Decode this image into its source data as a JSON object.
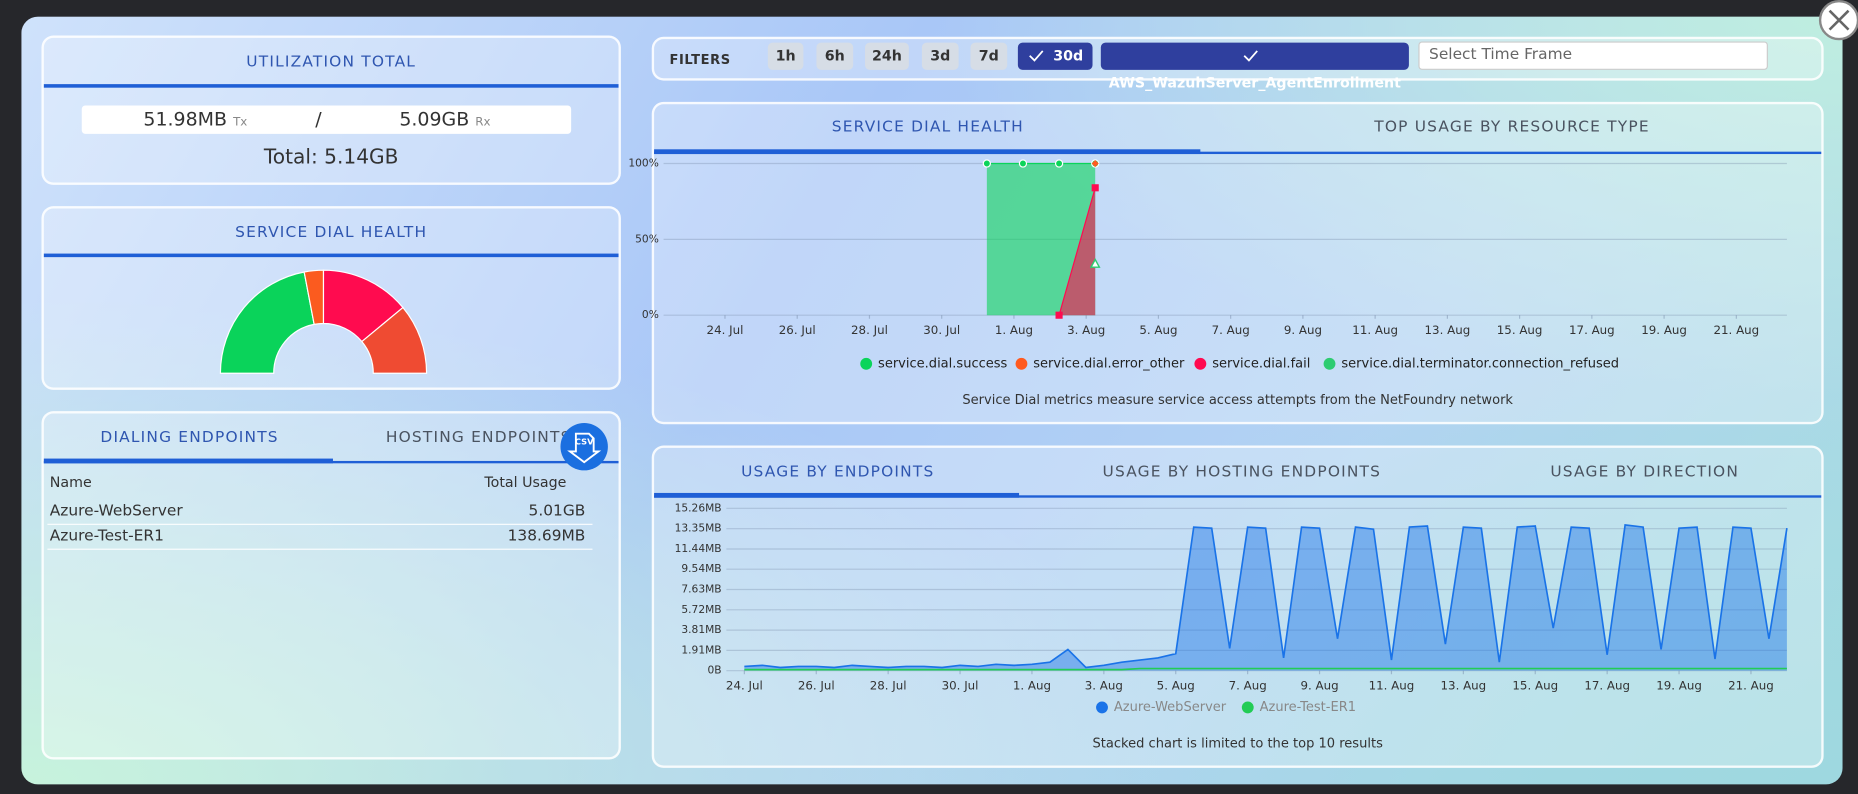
{
  "utilization": {
    "title": "UTILIZATION TOTAL",
    "tx": "51.98MB",
    "tx_unit": "Tx",
    "separator": "/",
    "rx": "5.09GB",
    "rx_unit": "Rx",
    "total": "Total: 5.14GB"
  },
  "dial_health_gauge": {
    "title": "SERVICE DIAL HEALTH",
    "segments": [
      {
        "color": "#0ad35a",
        "value": 44
      },
      {
        "color": "#fb5b1f",
        "value": 6
      },
      {
        "color": "#ff0b4f",
        "value": 28
      },
      {
        "color": "#ef4b32",
        "value": 22
      }
    ]
  },
  "endpoints": {
    "tabs": [
      "DIALING ENDPOINTS",
      "HOSTING ENDPOINTS"
    ],
    "csv": "CSV",
    "columns": [
      "Name",
      "Total Usage"
    ],
    "rows": [
      [
        "Azure-WebServer",
        "5.01GB"
      ],
      [
        "Azure-Test-ER1",
        "138.69MB"
      ]
    ]
  },
  "filters": {
    "label": "FILTERS",
    "buttons": [
      {
        "label": "1h",
        "selected": false
      },
      {
        "label": "6h",
        "selected": false
      },
      {
        "label": "24h",
        "selected": false
      },
      {
        "label": "3d",
        "selected": false
      },
      {
        "label": "7d",
        "selected": false
      },
      {
        "label": "30d",
        "selected": true
      }
    ],
    "service": "AWS_WazuhServer_AgentEnrollment",
    "time_frame_placeholder": "Select Time Frame"
  },
  "dial_chart": {
    "tabs": [
      "SERVICE DIAL HEALTH",
      "TOP USAGE BY RESOURCE TYPE"
    ],
    "note": "Service Dial metrics measure service access attempts from the NetFoundry network",
    "chart": {
      "type": "area",
      "x": [
        7.25,
        8.25,
        9.25,
        10.25
      ],
      "xlim": [
        -1.7,
        29.4
      ],
      "xticks": [
        {
          "value": 0,
          "label": "24. Jul"
        },
        {
          "value": 2,
          "label": "26. Jul"
        },
        {
          "value": 4,
          "label": "28. Jul"
        },
        {
          "value": 6,
          "label": "30. Jul"
        },
        {
          "value": 8,
          "label": "1. Aug"
        },
        {
          "value": 10,
          "label": "3. Aug"
        },
        {
          "value": 12,
          "label": "5. Aug"
        },
        {
          "value": 14,
          "label": "7. Aug"
        },
        {
          "value": 16,
          "label": "9. Aug"
        },
        {
          "value": 18,
          "label": "11. Aug"
        },
        {
          "value": 20,
          "label": "13. Aug"
        },
        {
          "value": 22,
          "label": "15. Aug"
        },
        {
          "value": 24,
          "label": "17. Aug"
        },
        {
          "value": 26,
          "label": "19. Aug"
        },
        {
          "value": 28,
          "label": "21. Aug"
        }
      ],
      "ylim": [
        0,
        100
      ],
      "yticks": [
        {
          "value": 0,
          "label": "0%"
        },
        {
          "value": 50,
          "label": "50%"
        },
        {
          "value": 100,
          "label": "100%"
        }
      ],
      "grid": true,
      "series": [
        {
          "name": "service.dial.success",
          "color": "#0bd45a",
          "fill": true,
          "marker": "circle",
          "values": [
            100,
            100,
            100,
            100
          ]
        },
        {
          "name": "service.dial.error_other",
          "color": "#ff5a1f",
          "fill": false,
          "marker": "diamond",
          "values": [
            null,
            null,
            null,
            100
          ]
        },
        {
          "name": "service.dial.fail",
          "color": "#ff0a50",
          "fill": true,
          "marker": "square",
          "values": [
            null,
            null,
            0,
            84
          ]
        },
        {
          "name": "service.dial.terminator.connection_refused",
          "color": "#2ecc71",
          "fill": false,
          "marker": "triangle",
          "values": [
            null,
            null,
            null,
            34
          ]
        }
      ]
    }
  },
  "usage_chart": {
    "tabs": [
      "USAGE BY ENDPOINTS",
      "USAGE BY HOSTING ENDPOINTS",
      "USAGE BY DIRECTION"
    ],
    "note": "Stacked chart is limited to the top 10 results",
    "chart": {
      "type": "area",
      "x": [
        0,
        0.5,
        1,
        1.5,
        2,
        2.5,
        3,
        3.5,
        4,
        4.5,
        5,
        5.5,
        6,
        6.5,
        7,
        7.5,
        8,
        8.5,
        9,
        9.5,
        10,
        10.5,
        11,
        11.5,
        12,
        12.5,
        13,
        13.5,
        14,
        14.5,
        15,
        15.5,
        16,
        16.5,
        17,
        17.5,
        18,
        18.5,
        19,
        19.5,
        20,
        20.5,
        21,
        21.5,
        22,
        22.5,
        23,
        23.5,
        24,
        24.5,
        25,
        25.5,
        26,
        26.5,
        27,
        27.5,
        28,
        28.5,
        29
      ],
      "xlim": [
        -0.5,
        29
      ],
      "xticks": [
        {
          "value": 0,
          "label": "24. Jul"
        },
        {
          "value": 2,
          "label": "26. Jul"
        },
        {
          "value": 4,
          "label": "28. Jul"
        },
        {
          "value": 6,
          "label": "30. Jul"
        },
        {
          "value": 8,
          "label": "1. Aug"
        },
        {
          "value": 10,
          "label": "3. Aug"
        },
        {
          "value": 12,
          "label": "5. Aug"
        },
        {
          "value": 14,
          "label": "7. Aug"
        },
        {
          "value": 16,
          "label": "9. Aug"
        },
        {
          "value": 18,
          "label": "11. Aug"
        },
        {
          "value": 20,
          "label": "13. Aug"
        },
        {
          "value": 22,
          "label": "15. Aug"
        },
        {
          "value": 24,
          "label": "17. Aug"
        },
        {
          "value": 26,
          "label": "19. Aug"
        },
        {
          "value": 28,
          "label": "21. Aug"
        }
      ],
      "ylim": [
        0,
        15.26
      ],
      "yticks": [
        {
          "value": 0,
          "label": "0B"
        },
        {
          "value": 1.91,
          "label": "1.91MB"
        },
        {
          "value": 3.81,
          "label": "3.81MB"
        },
        {
          "value": 5.72,
          "label": "5.72MB"
        },
        {
          "value": 7.63,
          "label": "7.63MB"
        },
        {
          "value": 9.54,
          "label": "9.54MB"
        },
        {
          "value": 11.44,
          "label": "11.44MB"
        },
        {
          "value": 13.35,
          "label": "13.35MB"
        },
        {
          "value": 15.26,
          "label": "15.26MB"
        }
      ],
      "grid": true,
      "series": [
        {
          "name": "Azure-WebServer",
          "color": "#1a73e8",
          "fill": true,
          "values": [
            0.4,
            0.5,
            0.3,
            0.4,
            0.4,
            0.3,
            0.5,
            0.4,
            0.3,
            0.4,
            0.4,
            0.3,
            0.5,
            0.4,
            0.6,
            0.5,
            0.6,
            0.8,
            2.0,
            0.3,
            0.5,
            0.8,
            1.0,
            1.2,
            1.6,
            13.5,
            13.4,
            2.1,
            13.5,
            13.4,
            1.2,
            13.5,
            13.4,
            3.0,
            13.5,
            13.3,
            1.0,
            13.5,
            13.6,
            2.5,
            13.5,
            13.4,
            0.8,
            13.5,
            13.6,
            4.0,
            13.5,
            13.4,
            1.5,
            13.7,
            13.5,
            2.0,
            13.4,
            13.5,
            1.1,
            13.5,
            13.4,
            3.0,
            13.4
          ]
        },
        {
          "name": "Azure-Test-ER1",
          "color": "#22cc55",
          "fill": false,
          "values": [
            0.1,
            0.1,
            0.1,
            0.1,
            0.1,
            0.1,
            0.1,
            0.1,
            0.1,
            0.1,
            0.1,
            0.1,
            0.1,
            0.1,
            0.1,
            0.1,
            0.1,
            0.1,
            0.1,
            0.1,
            0.1,
            0.1,
            0.2,
            0.2,
            0.2,
            0.2,
            0.2,
            0.2,
            0.2,
            0.2,
            0.2,
            0.2,
            0.2,
            0.2,
            0.2,
            0.2,
            0.2,
            0.2,
            0.2,
            0.2,
            0.2,
            0.2,
            0.2,
            0.2,
            0.2,
            0.2,
            0.2,
            0.2,
            0.2,
            0.2,
            0.2,
            0.2,
            0.2,
            0.2,
            0.2,
            0.2,
            0.2,
            0.2,
            0.2
          ]
        }
      ]
    }
  }
}
